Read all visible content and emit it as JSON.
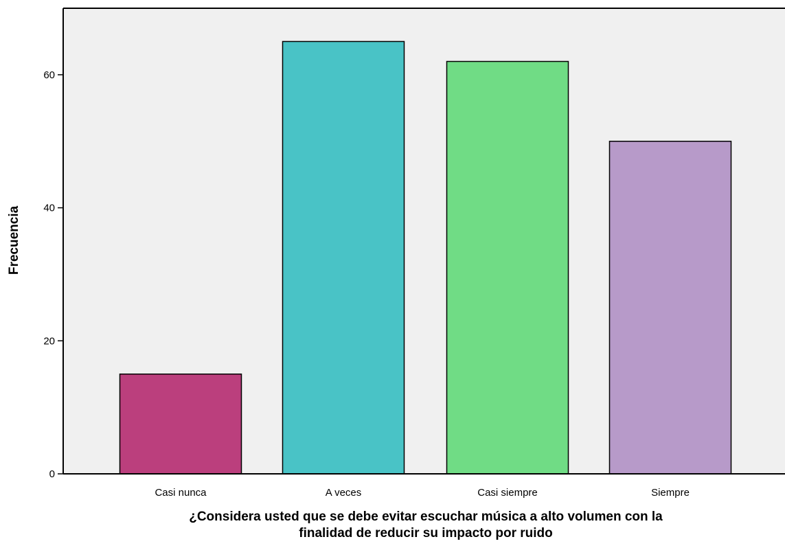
{
  "chart_data": {
    "type": "bar",
    "title": "",
    "xlabel": "¿Considera usted que se debe evitar escuchar música a alto volumen con la finalidad de reducir su impacto por ruido",
    "xlabel_lines": [
      "¿Considera usted que se debe evitar escuchar música a alto volumen con la",
      "finalidad de reducir su impacto por ruido"
    ],
    "ylabel": "Frecuencia",
    "categories": [
      "Casi nunca",
      "A veces",
      "Casi siempre",
      "Siempre"
    ],
    "values": [
      15,
      65,
      62,
      50
    ],
    "ylim": [
      0,
      70
    ],
    "yticks": [
      0,
      20,
      40,
      60
    ],
    "yticks_text": [
      "0",
      "20",
      "40",
      "60"
    ],
    "grid": false,
    "legend": "none",
    "colors": [
      "#bb3f7d",
      "#49c3c6",
      "#70dc85",
      "#b79ac9"
    ],
    "plot_background": "#f0f0f0",
    "bar_outline": "#000000"
  }
}
